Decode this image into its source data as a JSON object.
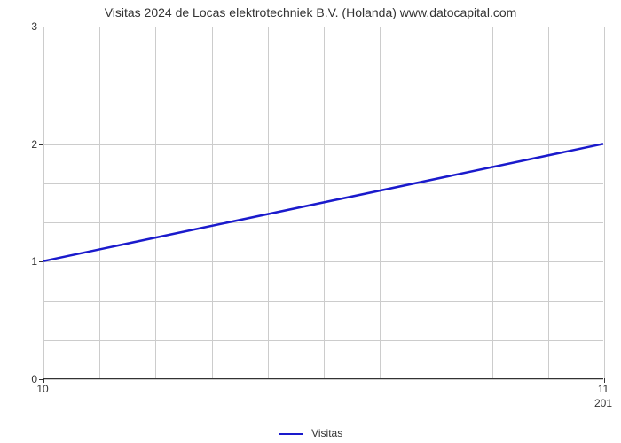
{
  "chart": {
    "type": "line",
    "title": "Visitas 2024 de Locas elektrotechniek B.V. (Holanda) www.datocapital.com",
    "title_fontsize": 14,
    "background_color": "#ffffff",
    "grid_color": "#cccccc",
    "axis_color": "#333333",
    "text_color": "#333333",
    "line_color": "#1a1acc",
    "line_width": 2.5,
    "xlim": [
      10,
      11
    ],
    "ylim": [
      0,
      3
    ],
    "x_ticks": [
      10,
      11
    ],
    "y_ticks": [
      0,
      1,
      2,
      3
    ],
    "x_minor_count": 10,
    "y_minor_count": 3,
    "x_axis_secondary_label": "201",
    "data": {
      "x": [
        10,
        11
      ],
      "y": [
        1,
        2
      ]
    },
    "legend_label": "Visitas",
    "label_fontsize": 12
  }
}
